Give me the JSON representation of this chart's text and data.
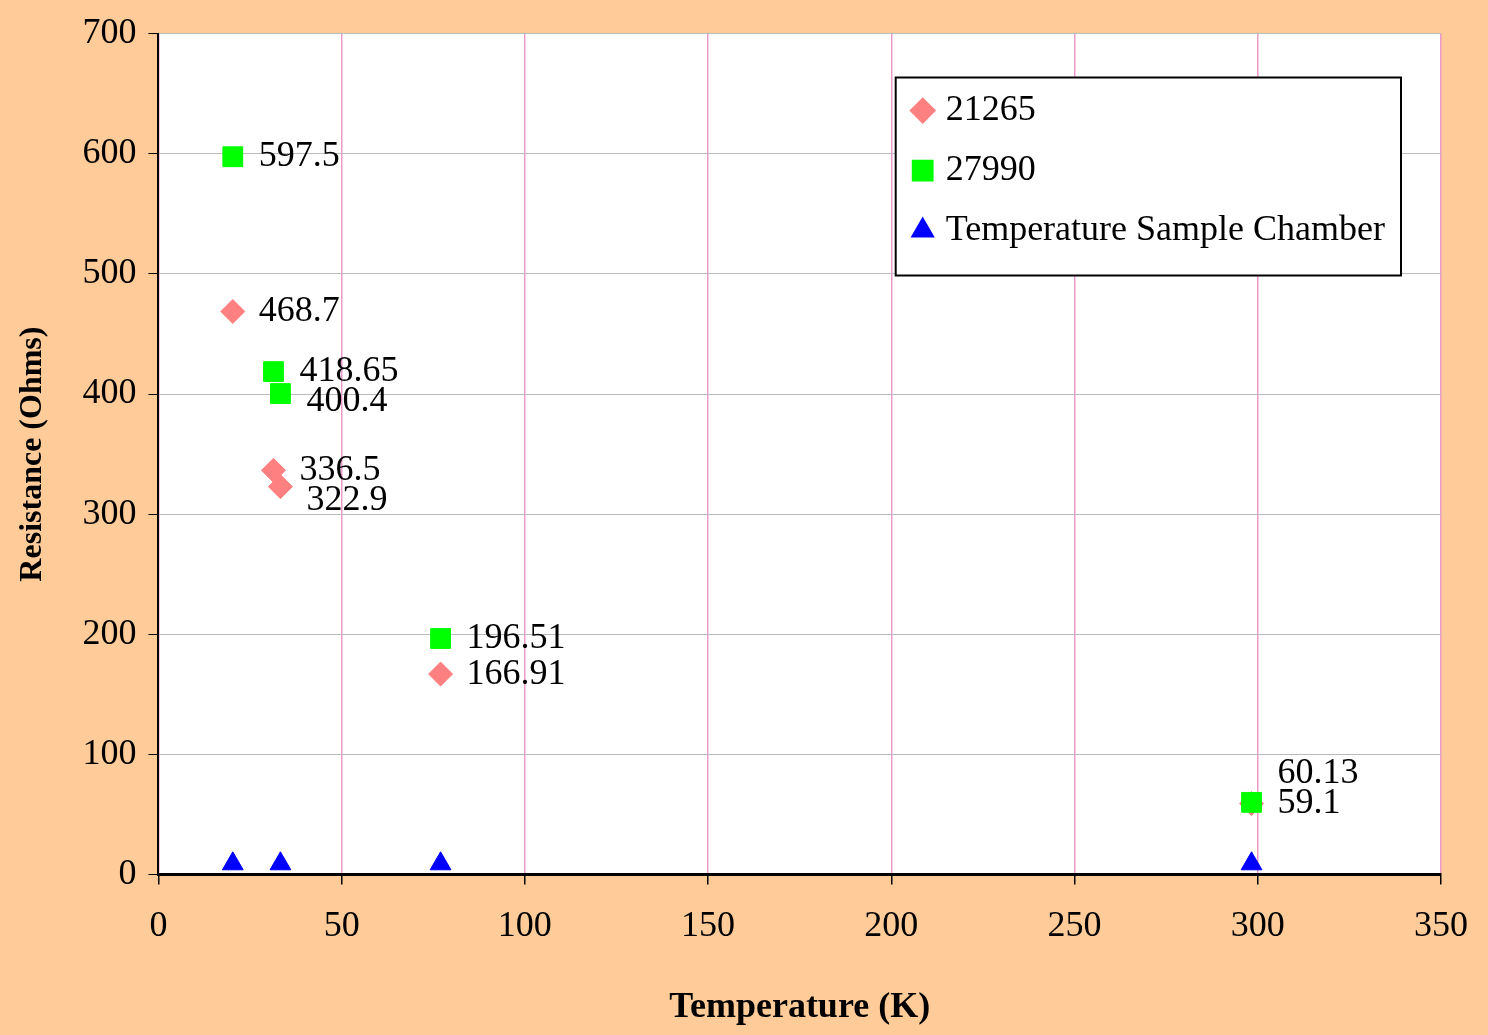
{
  "chart_data": {
    "type": "scatter",
    "xlabel": "Temperature (K)",
    "ylabel": "Resistance (Ohms)",
    "xlim": [
      0,
      350
    ],
    "xticks": [
      0,
      50,
      100,
      150,
      200,
      250,
      300,
      350
    ],
    "ylim": [
      0,
      700
    ],
    "yticks": [
      0,
      100,
      200,
      300,
      400,
      500,
      600,
      700
    ],
    "grid": true,
    "legend": "top right",
    "data_labels": true,
    "series": [
      {
        "name": "21265",
        "color": "#ff8080",
        "marker": "diamond",
        "x": [
          20.3,
          31.4,
          33.3,
          77,
          298.3
        ],
        "values": [
          468.7,
          336.5,
          322.9,
          166.91,
          59.1
        ]
      },
      {
        "name": "27990",
        "color": "#00ff00",
        "marker": "square",
        "x": [
          20.3,
          31.4,
          33.3,
          77,
          298.3
        ],
        "values": [
          597.5,
          418.65,
          400.4,
          196.51,
          60.13
        ]
      },
      {
        "name": "Temperature Sample Chamber",
        "color": "#0000ff",
        "marker": "triangle",
        "data_labels": false,
        "x": [
          20.3,
          33.3,
          77,
          298.3
        ],
        "values": [
          9,
          9,
          9,
          9
        ]
      }
    ]
  }
}
